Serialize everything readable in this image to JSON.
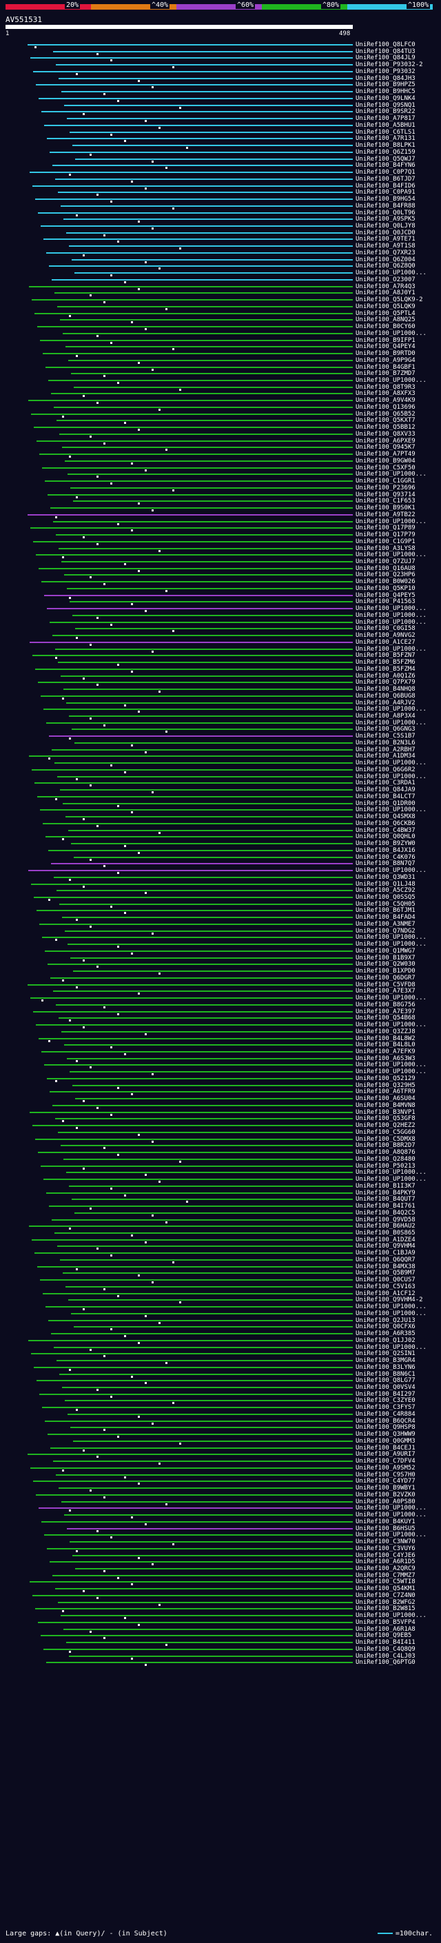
{
  "legend": {
    "ticks": [
      "20%",
      "^40%",
      "^60%",
      "^80%",
      "^100%"
    ],
    "colors": [
      "#e0143c",
      "#e07a14",
      "#9b3fc9",
      "#1fb51f",
      "#33c7e6"
    ]
  },
  "query": {
    "name": "AV551531",
    "start": "1",
    "end": "498"
  },
  "hits": [
    {
      "label": "UniRef100_Q8LFC0",
      "color": "#33c7e6"
    },
    {
      "label": "UniRef100_Q84TU3",
      "color": "#33c7e6"
    },
    {
      "label": "UniRef100_Q84JL9",
      "color": "#33c7e6"
    },
    {
      "label": "UniRef100_P93032-2",
      "color": "#33c7e6"
    },
    {
      "label": "UniRef100_P93032",
      "color": "#33c7e6"
    },
    {
      "label": "UniRef100_Q84JH3",
      "color": "#33c7e6"
    },
    {
      "label": "UniRef100_B9HPZ5",
      "color": "#33c7e6"
    },
    {
      "label": "UniRef100_B9HHC5",
      "color": "#33c7e6"
    },
    {
      "label": "UniRef100_Q9LNK4",
      "color": "#33c7e6"
    },
    {
      "label": "UniRef100_Q9SNQ1",
      "color": "#33c7e6"
    },
    {
      "label": "UniRef100_B9SR22",
      "color": "#33c7e6"
    },
    {
      "label": "UniRef100_A7P817",
      "color": "#33c7e6"
    },
    {
      "label": "UniRef100_A5BHU1",
      "color": "#33c7e6"
    },
    {
      "label": "UniRef100_C6TLS1",
      "color": "#33c7e6"
    },
    {
      "label": "UniRef100_A7R131",
      "color": "#33c7e6"
    },
    {
      "label": "UniRef100_B8LPK1",
      "color": "#33c7e6"
    },
    {
      "label": "UniRef100_Q6Z159",
      "color": "#33c7e6"
    },
    {
      "label": "UniRef100_Q5QWJ7",
      "color": "#33c7e6"
    },
    {
      "label": "UniRef100_B4FYN6",
      "color": "#33c7e6"
    },
    {
      "label": "UniRef100_C0P7Q1",
      "color": "#33c7e6"
    },
    {
      "label": "UniRef100_B6TJD7",
      "color": "#33c7e6"
    },
    {
      "label": "UniRef100_B4FID6",
      "color": "#33c7e6"
    },
    {
      "label": "UniRef100_C0PA91",
      "color": "#33c7e6"
    },
    {
      "label": "UniRef100_B9HG54",
      "color": "#33c7e6"
    },
    {
      "label": "UniRef100_B4FR88",
      "color": "#33c7e6"
    },
    {
      "label": "UniRef100_Q0LT96",
      "color": "#33c7e6"
    },
    {
      "label": "UniRef100_A9SPK5",
      "color": "#33c7e6"
    },
    {
      "label": "UniRef100_Q0LJY8",
      "color": "#33c7e6"
    },
    {
      "label": "UniRef100_Q0JCD0",
      "color": "#33c7e6"
    },
    {
      "label": "UniRef100_A9TE71",
      "color": "#33c7e6"
    },
    {
      "label": "UniRef100_A9T1S8",
      "color": "#33c7e6"
    },
    {
      "label": "UniRef100_Q7XR23",
      "color": "#33c7e6"
    },
    {
      "label": "UniRef100_Q6Z004",
      "color": "#33c7e6"
    },
    {
      "label": "UniRef100_Q6Z8Q0",
      "color": "#33c7e6"
    },
    {
      "label": "UniRef100_UP1000...",
      "color": "#33c7e6"
    },
    {
      "label": "UniRef100_O23007",
      "color": "#33c7e6"
    },
    {
      "label": "UniRef100_A7R4Q3",
      "color": "#1fb51f"
    },
    {
      "label": "UniRef100_A8J0Y1",
      "color": "#1fb51f"
    },
    {
      "label": "UniRef100_Q5LQK9-2",
      "color": "#1fb51f"
    },
    {
      "label": "UniRef100_Q5LQK9",
      "color": "#1fb51f"
    },
    {
      "label": "UniRef100_Q5PTL4",
      "color": "#1fb51f"
    },
    {
      "label": "UniRef100_A8NQ25",
      "color": "#1fb51f"
    },
    {
      "label": "UniRef100_B0CY60",
      "color": "#1fb51f"
    },
    {
      "label": "UniRef100_UP1000...",
      "color": "#1fb51f"
    },
    {
      "label": "UniRef100_B9IFP1",
      "color": "#1fb51f"
    },
    {
      "label": "UniRef100_Q4PEY4",
      "color": "#1fb51f"
    },
    {
      "label": "UniRef100_B9RTD0",
      "color": "#1fb51f"
    },
    {
      "label": "UniRef100_A9P9G4",
      "color": "#1fb51f"
    },
    {
      "label": "UniRef100_B4GBF1",
      "color": "#1fb51f"
    },
    {
      "label": "UniRef100_B7ZMD7",
      "color": "#1fb51f"
    },
    {
      "label": "UniRef100_UP1000...",
      "color": "#1fb51f"
    },
    {
      "label": "UniRef100_Q8T9R3",
      "color": "#1fb51f"
    },
    {
      "label": "UniRef100_A8XFX3",
      "color": "#1fb51f"
    },
    {
      "label": "UniRef100_A9V4K9",
      "color": "#1fb51f"
    },
    {
      "label": "UniRef100_Q13696",
      "color": "#1fb51f"
    },
    {
      "label": "UniRef100_Q65B52",
      "color": "#1fb51f"
    },
    {
      "label": "UniRef100_Q5KXT7",
      "color": "#1fb51f"
    },
    {
      "label": "UniRef100_Q5BB12",
      "color": "#1fb51f"
    },
    {
      "label": "UniRef100_Q8XV33",
      "color": "#1fb51f"
    },
    {
      "label": "UniRef100_A6PXE9",
      "color": "#1fb51f"
    },
    {
      "label": "UniRef100_Q945K7",
      "color": "#1fb51f"
    },
    {
      "label": "UniRef100_A7PT49",
      "color": "#1fb51f"
    },
    {
      "label": "UniRef100_B9GW04",
      "color": "#1fb51f"
    },
    {
      "label": "UniRef100_C5XF50",
      "color": "#1fb51f"
    },
    {
      "label": "UniRef100_UP1000...",
      "color": "#1fb51f"
    },
    {
      "label": "UniRef100_C1GGR1",
      "color": "#1fb51f"
    },
    {
      "label": "UniRef100_P23696",
      "color": "#1fb51f"
    },
    {
      "label": "UniRef100_Q93714",
      "color": "#1fb51f"
    },
    {
      "label": "UniRef100_C1F653",
      "color": "#1fb51f"
    },
    {
      "label": "UniRef100_B9S0K1",
      "color": "#1fb51f"
    },
    {
      "label": "UniRef100_A9TB22",
      "color": "#9b3fc9"
    },
    {
      "label": "UniRef100_UP1000...",
      "color": "#1fb51f"
    },
    {
      "label": "UniRef100_Q17P89",
      "color": "#1fb51f"
    },
    {
      "label": "UniRef100_Q17P79",
      "color": "#1fb51f"
    },
    {
      "label": "UniRef100_C1G9P1",
      "color": "#1fb51f"
    },
    {
      "label": "UniRef100_A3LYS8",
      "color": "#1fb51f"
    },
    {
      "label": "UniRef100_UP1000...",
      "color": "#1fb51f"
    },
    {
      "label": "UniRef100_Q7ZUJ7",
      "color": "#1fb51f"
    },
    {
      "label": "UniRef100_Q16AU8",
      "color": "#1fb51f"
    },
    {
      "label": "UniRef100_Q23HP6",
      "color": "#1fb51f"
    },
    {
      "label": "UniRef100_B0W026",
      "color": "#1fb51f"
    },
    {
      "label": "UniRef100_Q5KP10",
      "color": "#1fb51f"
    },
    {
      "label": "UniRef100_Q4PEY5",
      "color": "#9b3fc9"
    },
    {
      "label": "UniRef100_P41563",
      "color": "#1fb51f"
    },
    {
      "label": "UniRef100_UP1000...",
      "color": "#9b3fc9"
    },
    {
      "label": "UniRef100_UP1000...",
      "color": "#1fb51f"
    },
    {
      "label": "UniRef100_UP1000...",
      "color": "#1fb51f"
    },
    {
      "label": "UniRef100_C0GI58",
      "color": "#1fb51f"
    },
    {
      "label": "UniRef100_A9NVG2",
      "color": "#1fb51f"
    },
    {
      "label": "UniRef100_A1CE27",
      "color": "#9b3fc9"
    },
    {
      "label": "UniRef100_UP1000...",
      "color": "#1fb51f"
    },
    {
      "label": "UniRef100_B5FZN7",
      "color": "#1fb51f"
    },
    {
      "label": "UniRef100_B5FZM6",
      "color": "#1fb51f"
    },
    {
      "label": "UniRef100_B5FZM4",
      "color": "#1fb51f"
    },
    {
      "label": "UniRef100_A0Q1Z6",
      "color": "#1fb51f"
    },
    {
      "label": "UniRef100_Q7PX79",
      "color": "#1fb51f"
    },
    {
      "label": "UniRef100_B4NHQ8",
      "color": "#1fb51f"
    },
    {
      "label": "UniRef100_Q6BUG8",
      "color": "#1fb51f"
    },
    {
      "label": "UniRef100_A4RJV2",
      "color": "#1fb51f"
    },
    {
      "label": "UniRef100_UP1000...",
      "color": "#1fb51f"
    },
    {
      "label": "UniRef100_A8P3X4",
      "color": "#1fb51f"
    },
    {
      "label": "UniRef100_UP1000...",
      "color": "#1fb51f"
    },
    {
      "label": "UniRef100_Q6GNG3",
      "color": "#1fb51f"
    },
    {
      "label": "UniRef100_C5S1B7",
      "color": "#9b3fc9"
    },
    {
      "label": "UniRef100_B2N3L6",
      "color": "#1fb51f"
    },
    {
      "label": "UniRef100_A2RBH7",
      "color": "#1fb51f"
    },
    {
      "label": "UniRef100_A1DM34",
      "color": "#1fb51f"
    },
    {
      "label": "UniRef100_UP1000...",
      "color": "#1fb51f"
    },
    {
      "label": "UniRef100_Q6G6R2",
      "color": "#1fb51f"
    },
    {
      "label": "UniRef100_UP1000...",
      "color": "#1fb51f"
    },
    {
      "label": "UniRef100_C3RDA1",
      "color": "#1fb51f"
    },
    {
      "label": "UniRef100_Q84JA9",
      "color": "#1fb51f"
    },
    {
      "label": "UniRef100_B4LCT7",
      "color": "#1fb51f"
    },
    {
      "label": "UniRef100_Q1DR00",
      "color": "#1fb51f"
    },
    {
      "label": "UniRef100_UP1000...",
      "color": "#1fb51f"
    },
    {
      "label": "UniRef100_Q4SMX8",
      "color": "#1fb51f"
    },
    {
      "label": "UniRef100_Q6CKB6",
      "color": "#1fb51f"
    },
    {
      "label": "UniRef100_C4BW37",
      "color": "#1fb51f"
    },
    {
      "label": "UniRef100_Q0QHL0",
      "color": "#1fb51f"
    },
    {
      "label": "UniRef100_B9ZYW0",
      "color": "#1fb51f"
    },
    {
      "label": "UniRef100_B4JX16",
      "color": "#1fb51f"
    },
    {
      "label": "UniRef100_C4K076",
      "color": "#1fb51f"
    },
    {
      "label": "UniRef100_B8N7Q7",
      "color": "#9b3fc9"
    },
    {
      "label": "UniRef100_UP1000...",
      "color": "#9b3fc9"
    },
    {
      "label": "UniRef100_Q3WD31",
      "color": "#1fb51f"
    },
    {
      "label": "UniRef100_Q1LJ48",
      "color": "#1fb51f"
    },
    {
      "label": "UniRef100_A5CZ92",
      "color": "#1fb51f"
    },
    {
      "label": "UniRef100_Q0SSQ5",
      "color": "#1fb51f"
    },
    {
      "label": "UniRef100_C5QH05",
      "color": "#1fb51f"
    },
    {
      "label": "UniRef100_B6TJM1",
      "color": "#1fb51f"
    },
    {
      "label": "UniRef100_B4FAD4",
      "color": "#1fb51f"
    },
    {
      "label": "UniRef100_A3NME7",
      "color": "#1fb51f"
    },
    {
      "label": "UniRef100_Q7NDG2",
      "color": "#1fb51f"
    },
    {
      "label": "UniRef100_UP1000...",
      "color": "#1fb51f"
    },
    {
      "label": "UniRef100_UP1000...",
      "color": "#1fb51f"
    },
    {
      "label": "UniRef100_Q1MWG7",
      "color": "#1fb51f"
    },
    {
      "label": "UniRef100_B1B9X7",
      "color": "#1fb51f"
    },
    {
      "label": "UniRef100_Q2W030",
      "color": "#1fb51f"
    },
    {
      "label": "UniRef100_B1XPD0",
      "color": "#1fb51f"
    },
    {
      "label": "UniRef100_Q6DGR7",
      "color": "#1fb51f"
    },
    {
      "label": "UniRef100_C5VFD8",
      "color": "#1fb51f"
    },
    {
      "label": "UniRef100_A7E3X7",
      "color": "#1fb51f"
    },
    {
      "label": "UniRef100_UP1000...",
      "color": "#1fb51f"
    },
    {
      "label": "UniRef100_B8G756",
      "color": "#1fb51f"
    },
    {
      "label": "UniRef100_A7E397",
      "color": "#1fb51f"
    },
    {
      "label": "UniRef100_Q54B68",
      "color": "#1fb51f"
    },
    {
      "label": "UniRef100_UP1000...",
      "color": "#1fb51f"
    },
    {
      "label": "UniRef100_Q3ZZJ8",
      "color": "#1fb51f"
    },
    {
      "label": "UniRef100_B4L8W2",
      "color": "#1fb51f"
    },
    {
      "label": "UniRef100_B4L8L0",
      "color": "#1fb51f"
    },
    {
      "label": "UniRef100_A7EFK9",
      "color": "#1fb51f"
    },
    {
      "label": "UniRef100_A6S3W3",
      "color": "#1fb51f"
    },
    {
      "label": "UniRef100_UP1000...",
      "color": "#1fb51f"
    },
    {
      "label": "UniRef100_UP1000...",
      "color": "#1fb51f"
    },
    {
      "label": "UniRef100_Q52129",
      "color": "#1fb51f"
    },
    {
      "label": "UniRef100_Q329H5",
      "color": "#1fb51f"
    },
    {
      "label": "UniRef100_A6TFR9",
      "color": "#1fb51f"
    },
    {
      "label": "UniRef100_A6SU04",
      "color": "#1fb51f"
    },
    {
      "label": "UniRef100_B4MVN8",
      "color": "#1fb51f"
    },
    {
      "label": "UniRef100_B3NVP1",
      "color": "#1fb51f"
    },
    {
      "label": "UniRef100_Q53GF8",
      "color": "#1fb51f"
    },
    {
      "label": "UniRef100_Q2HEZ2",
      "color": "#1fb51f"
    },
    {
      "label": "UniRef100_C5GG60",
      "color": "#1fb51f"
    },
    {
      "label": "UniRef100_C5DMX8",
      "color": "#1fb51f"
    },
    {
      "label": "UniRef100_B8R2D7",
      "color": "#1fb51f"
    },
    {
      "label": "UniRef100_A8Q876",
      "color": "#1fb51f"
    },
    {
      "label": "UniRef100_Q28480",
      "color": "#1fb51f"
    },
    {
      "label": "UniRef100_P50213",
      "color": "#1fb51f"
    },
    {
      "label": "UniRef100_UP1000...",
      "color": "#1fb51f"
    },
    {
      "label": "UniRef100_UP1000...",
      "color": "#1fb51f"
    },
    {
      "label": "UniRef100_B1I3K7",
      "color": "#1fb51f"
    },
    {
      "label": "UniRef100_B4PKY9",
      "color": "#1fb51f"
    },
    {
      "label": "UniRef100_B4QUT7",
      "color": "#1fb51f"
    },
    {
      "label": "UniRef100_B4I761",
      "color": "#1fb51f"
    },
    {
      "label": "UniRef100_B4Q2C5",
      "color": "#1fb51f"
    },
    {
      "label": "UniRef100_Q9VD58",
      "color": "#1fb51f"
    },
    {
      "label": "UniRef100_B6HAU2",
      "color": "#1fb51f"
    },
    {
      "label": "UniRef100_B0S865",
      "color": "#1fb51f"
    },
    {
      "label": "UniRef100_A1DZE4",
      "color": "#1fb51f"
    },
    {
      "label": "UniRef100_Q9VHM4",
      "color": "#1fb51f"
    },
    {
      "label": "UniRef100_C1BJA9",
      "color": "#1fb51f"
    },
    {
      "label": "UniRef100_Q6QQR7",
      "color": "#1fb51f"
    },
    {
      "label": "UniRef100_B4MX38",
      "color": "#1fb51f"
    },
    {
      "label": "UniRef100_Q5B9M7",
      "color": "#1fb51f"
    },
    {
      "label": "UniRef100_Q0CUS7",
      "color": "#1fb51f"
    },
    {
      "label": "UniRef100_C5V163",
      "color": "#1fb51f"
    },
    {
      "label": "UniRef100_A1CF12",
      "color": "#1fb51f"
    },
    {
      "label": "UniRef100_Q9VHM4-2",
      "color": "#1fb51f"
    },
    {
      "label": "UniRef100_UP1000...",
      "color": "#1fb51f"
    },
    {
      "label": "UniRef100_UP1000...",
      "color": "#1fb51f"
    },
    {
      "label": "UniRef100_Q2JU13",
      "color": "#1fb51f"
    },
    {
      "label": "UniRef100_Q0CFX6",
      "color": "#1fb51f"
    },
    {
      "label": "UniRef100_A6R385",
      "color": "#1fb51f"
    },
    {
      "label": "UniRef100_Q1JJ02",
      "color": "#1fb51f"
    },
    {
      "label": "UniRef100_UP1000...",
      "color": "#1fb51f"
    },
    {
      "label": "UniRef100_Q2SIN1",
      "color": "#1fb51f"
    },
    {
      "label": "UniRef100_B3MGR4",
      "color": "#1fb51f"
    },
    {
      "label": "UniRef100_B3LYN6",
      "color": "#1fb51f"
    },
    {
      "label": "UniRef100_B8N6C1",
      "color": "#1fb51f"
    },
    {
      "label": "UniRef100_Q8LG77",
      "color": "#1fb51f"
    },
    {
      "label": "UniRef100_Q0VSV4",
      "color": "#1fb51f"
    },
    {
      "label": "UniRef100_B4I297",
      "color": "#1fb51f"
    },
    {
      "label": "UniRef100_C3ZYE0",
      "color": "#1fb51f"
    },
    {
      "label": "UniRef100_C3FYS7",
      "color": "#1fb51f"
    },
    {
      "label": "UniRef100_C4R884",
      "color": "#1fb51f"
    },
    {
      "label": "UniRef100_B6QCR4",
      "color": "#1fb51f"
    },
    {
      "label": "UniRef100_Q9HSP8",
      "color": "#1fb51f"
    },
    {
      "label": "UniRef100_Q3HWW9",
      "color": "#1fb51f"
    },
    {
      "label": "UniRef100_Q0GMM3",
      "color": "#1fb51f"
    },
    {
      "label": "UniRef100_B4CEJ1",
      "color": "#1fb51f"
    },
    {
      "label": "UniRef100_A9URI7",
      "color": "#1fb51f"
    },
    {
      "label": "UniRef100_C7DFV4",
      "color": "#1fb51f"
    },
    {
      "label": "UniRef100_A9SM52",
      "color": "#1fb51f"
    },
    {
      "label": "UniRef100_C9S7H0",
      "color": "#1fb51f"
    },
    {
      "label": "UniRef100_C4YD77",
      "color": "#1fb51f"
    },
    {
      "label": "UniRef100_B9WBY1",
      "color": "#1fb51f"
    },
    {
      "label": "UniRef100_B2VZK0",
      "color": "#1fb51f"
    },
    {
      "label": "UniRef100_A0PS80",
      "color": "#1fb51f"
    },
    {
      "label": "UniRef100_UP1000...",
      "color": "#9b3fc9"
    },
    {
      "label": "UniRef100_UP1000...",
      "color": "#1fb51f"
    },
    {
      "label": "UniRef100_B4KUY1",
      "color": "#1fb51f"
    },
    {
      "label": "UniRef100_B6HSU5",
      "color": "#9b3fc9"
    },
    {
      "label": "UniRef100_UP1000...",
      "color": "#1fb51f"
    },
    {
      "label": "UniRef100_C3NW70",
      "color": "#1fb51f"
    },
    {
      "label": "UniRef100_C3VUY6",
      "color": "#1fb51f"
    },
    {
      "label": "UniRef100_C4YJE6",
      "color": "#1fb51f"
    },
    {
      "label": "UniRef100_A6R1D5",
      "color": "#1fb51f"
    },
    {
      "label": "UniRef100_A2QRC9",
      "color": "#1fb51f"
    },
    {
      "label": "UniRef100_C7MMZ7",
      "color": "#1fb51f"
    },
    {
      "label": "UniRef100_C5WTI8",
      "color": "#1fb51f"
    },
    {
      "label": "UniRef100_Q54KM1",
      "color": "#1fb51f"
    },
    {
      "label": "UniRef100_C7Z4N0",
      "color": "#1fb51f"
    },
    {
      "label": "UniRef100_B2WFG2",
      "color": "#1fb51f"
    },
    {
      "label": "UniRef100_B2W815",
      "color": "#1fb51f"
    },
    {
      "label": "UniRef100_UP1000...",
      "color": "#1fb51f"
    },
    {
      "label": "UniRef100_B5VFP4",
      "color": "#1fb51f"
    },
    {
      "label": "UniRef100_A6R1A8",
      "color": "#1fb51f"
    },
    {
      "label": "UniRef100_Q9EB5",
      "color": "#1fb51f"
    },
    {
      "label": "UniRef100_B4I411",
      "color": "#1fb51f"
    },
    {
      "label": "UniRef100_C4Q8Q9",
      "color": "#1fb51f"
    },
    {
      "label": "UniRef100_C4LJ03",
      "color": "#1fb51f"
    },
    {
      "label": "UniRef100_Q6PTG0",
      "color": "#1fb51f"
    }
  ],
  "footer": {
    "gaps_text": "Large gaps: ▲(in Query)/ - (in Subject)",
    "scale_text": "=100char."
  }
}
